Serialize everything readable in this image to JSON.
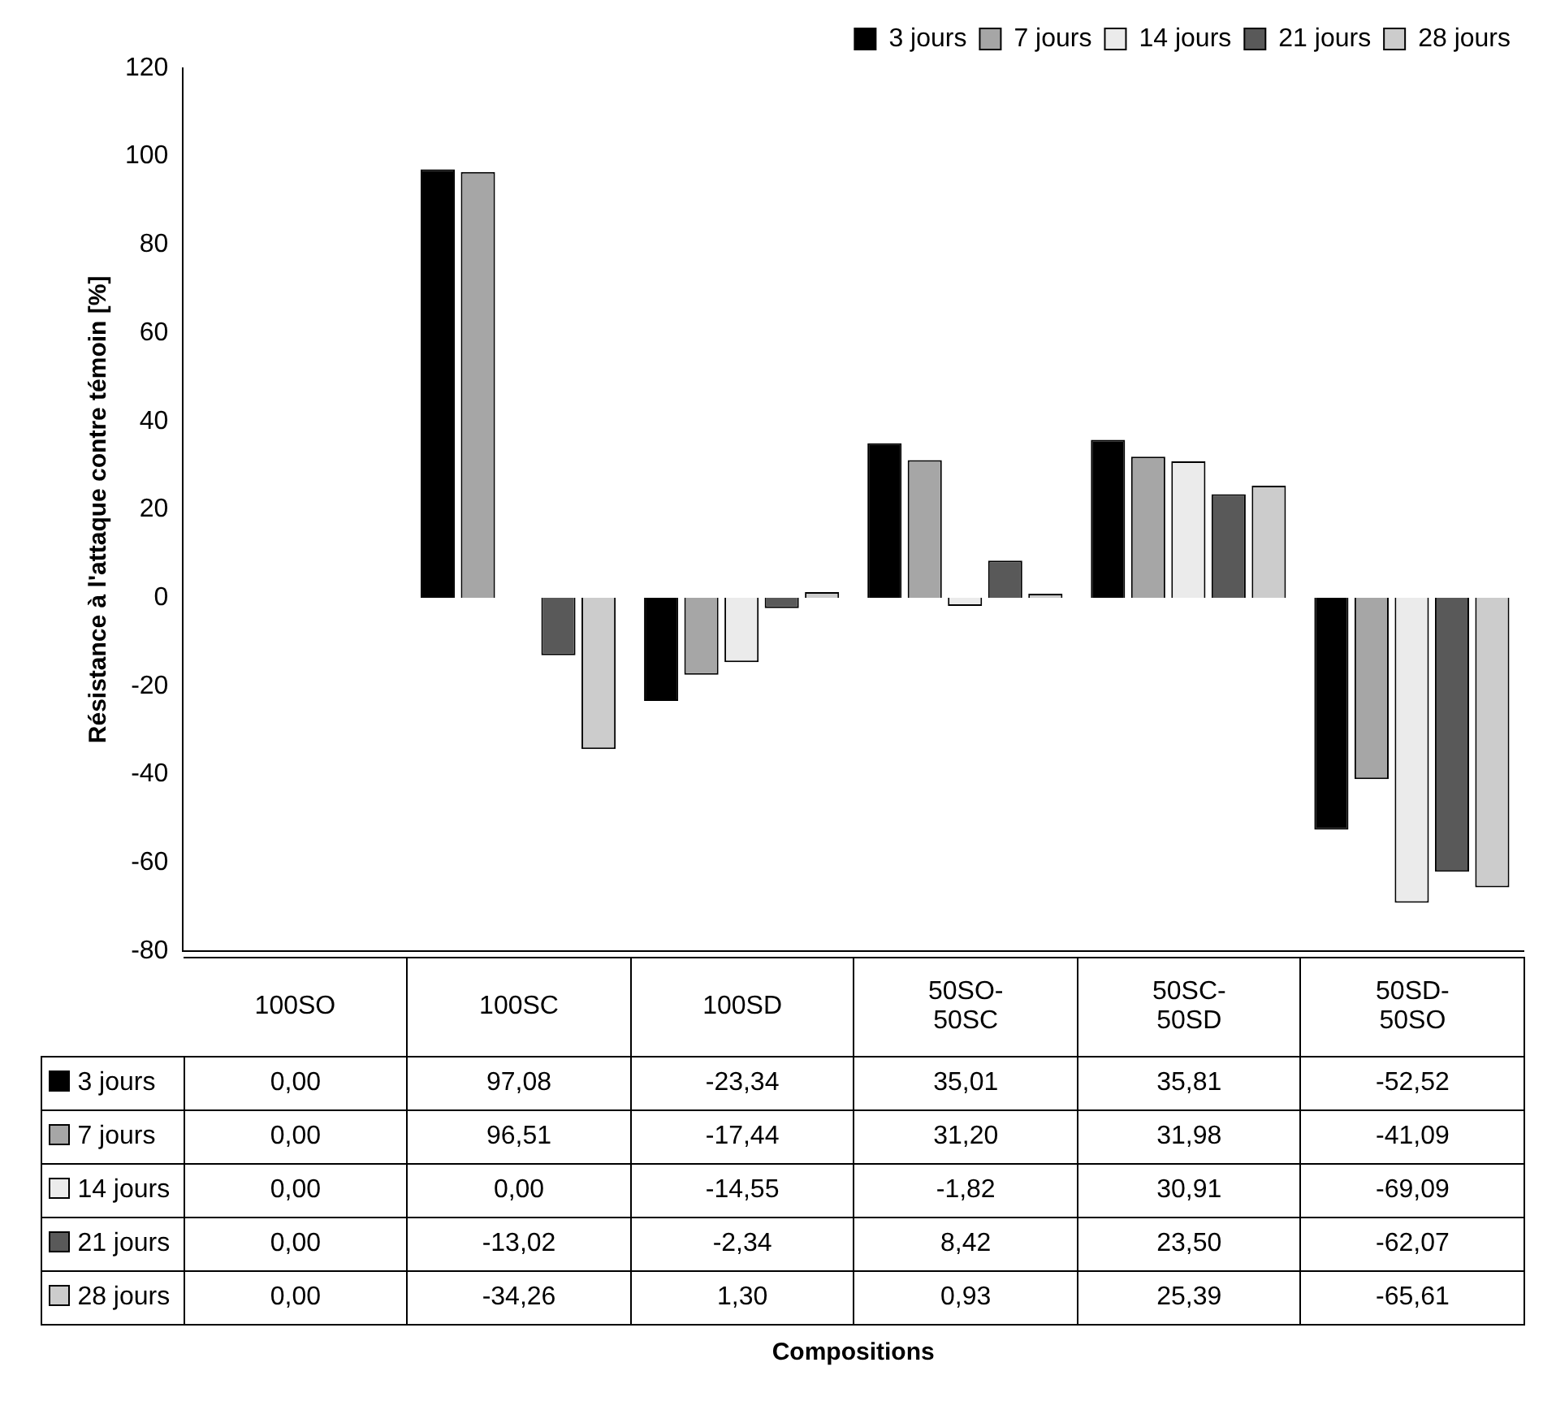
{
  "chart_data": {
    "type": "bar",
    "annotations": [
      "Compositions"
    ],
    "ylabel": "Résistance à l'attaque contre témoin [%]",
    "categories": [
      "100SO",
      "100SC",
      "100SD",
      "50SO-50SC",
      "50SC-50SD",
      "50SD-50SO"
    ],
    "series": [
      {
        "name": "3 jours",
        "color": "#000000",
        "values": [
          0.0,
          97.08,
          -23.34,
          35.01,
          35.81,
          -52.52
        ],
        "value_labels": [
          "0,00",
          "97,08",
          "-23,34",
          "35,01",
          "35,81",
          "-52,52"
        ]
      },
      {
        "name": "7 jours",
        "color": "#a6a6a6",
        "values": [
          0.0,
          96.51,
          -17.44,
          31.2,
          31.98,
          -41.09
        ],
        "value_labels": [
          "0,00",
          "96,51",
          "-17,44",
          "31,20",
          "31,98",
          "-41,09"
        ]
      },
      {
        "name": "14 jours",
        "color": "#ebebeb",
        "values": [
          0.0,
          0.0,
          -14.55,
          -1.82,
          30.91,
          -69.09
        ],
        "value_labels": [
          "0,00",
          "0,00",
          "-14,55",
          "-1,82",
          "30,91",
          "-69,09"
        ]
      },
      {
        "name": "21 jours",
        "color": "#595959",
        "values": [
          0.0,
          -13.02,
          -2.34,
          8.42,
          23.5,
          -62.07
        ],
        "value_labels": [
          "0,00",
          "-13,02",
          "-2,34",
          "8,42",
          "23,50",
          "-62,07"
        ]
      },
      {
        "name": "28 jours",
        "color": "#cccccc",
        "values": [
          0.0,
          -34.26,
          1.3,
          0.93,
          25.39,
          -65.61
        ],
        "value_labels": [
          "0,00",
          "-34,26",
          "1,30",
          "0,93",
          "25,39",
          "-65,61"
        ]
      }
    ],
    "ylim": [
      -80,
      120
    ],
    "yticks": [
      -80,
      -60,
      -40,
      -20,
      0,
      20,
      40,
      60,
      80,
      100,
      120
    ],
    "grid": false,
    "legend": "top"
  }
}
